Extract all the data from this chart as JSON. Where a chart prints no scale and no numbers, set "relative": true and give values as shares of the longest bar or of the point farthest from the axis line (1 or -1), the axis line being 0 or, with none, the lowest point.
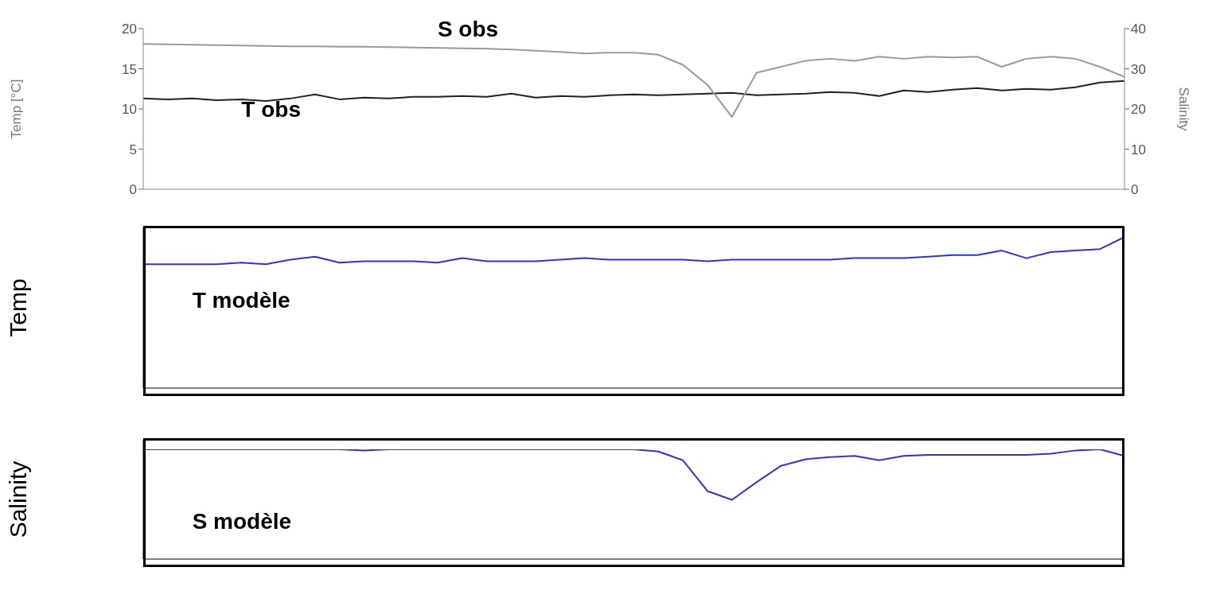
{
  "chart_data": [
    {
      "type": "line",
      "xlabel": null,
      "ylabel": "Temp [°C]",
      "y2label": "Salinity",
      "categories": [
        null,
        null,
        null,
        null,
        null,
        null,
        null,
        null,
        null,
        null,
        null,
        null,
        null,
        null,
        null,
        null,
        null,
        null,
        null,
        null,
        null,
        null,
        null,
        null,
        null,
        null,
        null,
        null,
        null,
        null,
        null,
        null,
        null,
        null,
        null,
        null,
        null,
        null,
        null,
        null,
        null
      ],
      "series": [
        {
          "name": "T obs",
          "color": "#222222",
          "values": [
            11.3,
            11.2,
            11.3,
            11.1,
            11.2,
            11.0,
            11.3,
            11.8,
            11.2,
            11.4,
            11.3,
            11.5,
            11.5,
            11.6,
            11.5,
            11.9,
            11.4,
            11.6,
            11.5,
            11.7,
            11.8,
            11.7,
            11.8,
            11.9,
            12.0,
            11.7,
            11.8,
            11.9,
            12.1,
            12.0,
            11.6,
            12.3,
            12.1,
            12.4,
            12.6,
            12.3,
            12.5,
            12.4,
            12.7,
            13.3,
            13.5
          ]
        },
        {
          "name": "S obs",
          "color": "#999999",
          "axis": "y2",
          "values": [
            36.2,
            36.1,
            36.0,
            35.9,
            35.8,
            35.7,
            35.6,
            35.6,
            35.5,
            35.5,
            35.4,
            35.3,
            35.2,
            35.1,
            35.0,
            34.8,
            34.5,
            34.2,
            33.8,
            34.0,
            34.0,
            33.5,
            31.0,
            26.0,
            18.0,
            29.0,
            30.5,
            32.0,
            32.5,
            32.0,
            33.0,
            32.5,
            33.0,
            32.8,
            33.0,
            30.5,
            32.5,
            33.0,
            32.5,
            30.5,
            28.0
          ]
        }
      ],
      "ylim": [
        0,
        20
      ],
      "yticks": [
        0,
        5,
        10,
        15,
        20
      ],
      "y2lim": [
        0,
        40
      ],
      "y2ticks": [
        0,
        10,
        20,
        30,
        40
      ],
      "tick_labels": "y",
      "marker": "none",
      "line_style": "solid"
    },
    {
      "type": "line",
      "relative": true,
      "ylabel": "Temp",
      "categories": [
        null,
        null,
        null,
        null,
        null,
        null,
        null,
        null,
        null,
        null,
        null,
        null,
        null,
        null,
        null,
        null,
        null,
        null,
        null,
        null,
        null,
        null,
        null,
        null,
        null,
        null,
        null,
        null,
        null,
        null,
        null,
        null,
        null,
        null,
        null,
        null,
        null,
        null,
        null,
        null,
        null
      ],
      "series": [
        {
          "name": "T modèle",
          "color": "#3333cc",
          "values": [
            0.82,
            0.82,
            0.82,
            0.82,
            0.83,
            0.82,
            0.85,
            0.87,
            0.83,
            0.84,
            0.84,
            0.84,
            0.83,
            0.86,
            0.84,
            0.84,
            0.84,
            0.85,
            0.86,
            0.85,
            0.85,
            0.85,
            0.85,
            0.84,
            0.85,
            0.85,
            0.85,
            0.85,
            0.85,
            0.86,
            0.86,
            0.86,
            0.87,
            0.88,
            0.88,
            0.91,
            0.86,
            0.9,
            0.91,
            0.92,
            1.0
          ]
        }
      ],
      "tick_labels": false,
      "marker": "none",
      "line_style": "solid"
    },
    {
      "type": "line",
      "relative": true,
      "ylabel": "Salinity",
      "categories": [
        null,
        null,
        null,
        null,
        null,
        null,
        null,
        null,
        null,
        null,
        null,
        null,
        null,
        null,
        null,
        null,
        null,
        null,
        null,
        null,
        null,
        null,
        null,
        null,
        null,
        null,
        null,
        null,
        null,
        null,
        null,
        null,
        null,
        null,
        null,
        null,
        null,
        null,
        null,
        null,
        null
      ],
      "series": [
        {
          "name": "S modèle",
          "color": "#3333cc",
          "values": [
            1.0,
            1.0,
            1.0,
            1.0,
            1.0,
            1.0,
            1.0,
            1.0,
            1.0,
            0.99,
            1.0,
            1.0,
            1.0,
            1.0,
            1.0,
            1.0,
            1.0,
            1.0,
            1.0,
            1.0,
            1.0,
            0.98,
            0.9,
            0.62,
            0.54,
            0.7,
            0.85,
            0.91,
            0.93,
            0.94,
            0.9,
            0.94,
            0.95,
            0.95,
            0.95,
            0.95,
            0.95,
            0.96,
            0.99,
            1.0,
            0.94
          ]
        }
      ],
      "tick_labels": false,
      "marker": "none",
      "line_style": "solid"
    }
  ]
}
